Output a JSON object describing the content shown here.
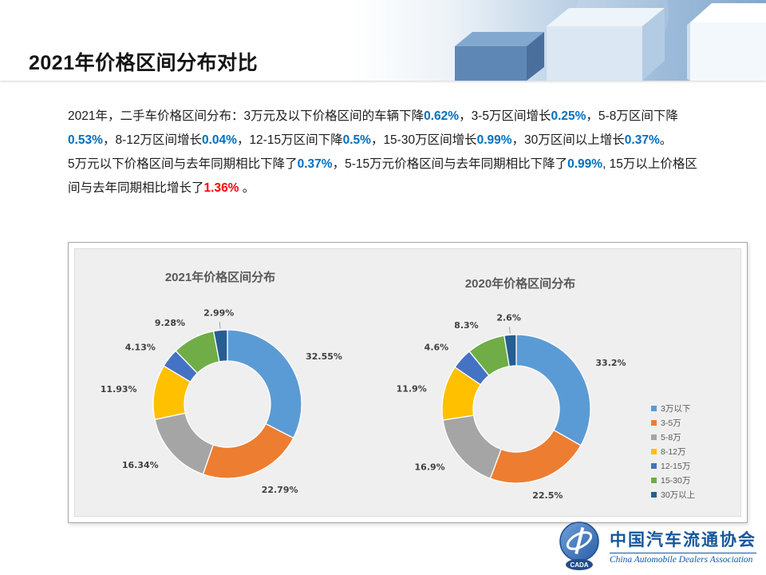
{
  "header": {
    "title": "2021年价格区间分布对比"
  },
  "body": {
    "highlight_color": "#0070C0",
    "negative_color": "#FF0000",
    "paragraphs": [
      [
        {
          "t": "2021年，二手车价格区间分布：3万元及以下价格区间的车辆下降",
          "s": "n"
        },
        {
          "t": "0.62%",
          "s": "b"
        },
        {
          "t": "，3-5万区间增长",
          "s": "n"
        },
        {
          "t": "0.25%",
          "s": "b"
        },
        {
          "t": "，5-8万区间下降",
          "s": "n"
        },
        {
          "t": "0.53%",
          "s": "b"
        },
        {
          "t": "，8-12万区间增长",
          "s": "n"
        },
        {
          "t": "0.04%",
          "s": "b"
        },
        {
          "t": "，12-15万区间下降",
          "s": "n"
        },
        {
          "t": "0.5%",
          "s": "b"
        },
        {
          "t": "，15-30万区间增长",
          "s": "n"
        },
        {
          "t": "0.99%",
          "s": "b"
        },
        {
          "t": "，30万区间以上增长",
          "s": "n"
        },
        {
          "t": "0.37%",
          "s": "b"
        },
        {
          "t": "。",
          "s": "n"
        }
      ],
      [
        {
          "t": "5万元以下价格区间与去年同期相比下降了",
          "s": "n"
        },
        {
          "t": "0.37%",
          "s": "b"
        },
        {
          "t": "，5-15万元价格区间与去年同期相比下降了",
          "s": "n"
        },
        {
          "t": "0.99%",
          "s": "b"
        },
        {
          "t": ", 15万以上价格区间与去年同期相比增长了",
          "s": "n"
        },
        {
          "t": "1.36%",
          "s": "r"
        },
        {
          "t": " 。",
          "s": "n"
        }
      ]
    ]
  },
  "chart_panel": {
    "colors": [
      "#5B9BD5",
      "#ED7D31",
      "#A5A5A5",
      "#FFC000",
      "#4472C4",
      "#70AD47",
      "#255E91"
    ],
    "legend": [
      "3万以下",
      "3-5万",
      "5-8万",
      "8-12万",
      "12-15万",
      "15-30万",
      "30万以上"
    ]
  },
  "chart_data": [
    {
      "type": "pie",
      "subtype": "donut",
      "title": "2021年价格区间分布",
      "categories": [
        "3万以下",
        "3-5万",
        "5-8万",
        "8-12万",
        "12-15万",
        "15-30万",
        "30万以上"
      ],
      "values": [
        32.55,
        22.79,
        16.34,
        11.93,
        4.13,
        9.28,
        2.99
      ],
      "value_labels": [
        "32.55%",
        "22.79%",
        "16.34%",
        "11.93%",
        "4.13%",
        "9.28%",
        "2.99%"
      ],
      "legend_position": "right"
    },
    {
      "type": "pie",
      "subtype": "donut",
      "title": "2020年价格区间分布",
      "categories": [
        "3万以下",
        "3-5万",
        "5-8万",
        "8-12万",
        "12-15万",
        "15-30万",
        "30万以上"
      ],
      "values": [
        33.2,
        22.5,
        16.9,
        11.9,
        4.6,
        8.3,
        2.6
      ],
      "value_labels": [
        "33.2%",
        "22.5%",
        "16.9%",
        "11.9%",
        "4.6%",
        "8.3%",
        "2.6%"
      ],
      "legend_position": "right"
    }
  ],
  "footer": {
    "logo_text": "CADA",
    "cn_name": "中国汽车流通协会",
    "en_name": "China Automobile Dealers Association"
  }
}
